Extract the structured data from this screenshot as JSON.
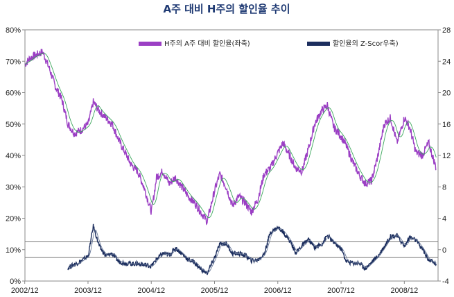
{
  "chart_data": {
    "type": "line",
    "title": "A주 대비 H주의 할인율 추이",
    "x_ticks": [
      "2002/12",
      "2003/12",
      "2004/12",
      "2005/12",
      "2006/12",
      "2007/12",
      "2008/12"
    ],
    "y_left": {
      "ticks": [
        "0%",
        "10%",
        "20%",
        "30%",
        "40%",
        "50%",
        "60%",
        "70%",
        "80%"
      ],
      "min": 0,
      "max": 80
    },
    "y_right": {
      "ticks": [
        "-4",
        "0",
        "4",
        "8",
        "12",
        "16",
        "20",
        "24",
        "28"
      ],
      "min": -4,
      "max": 28
    },
    "reference_lines_right_axis": [
      1.0,
      -1.0
    ],
    "series": [
      {
        "name": "H주의 A주 대비 할인율(좌축)",
        "axis": "left",
        "color": "#9b3fc4",
        "x": [
          2002.92,
          2003.0,
          2003.1,
          2003.2,
          2003.3,
          2003.4,
          2003.5,
          2003.6,
          2003.7,
          2003.8,
          2003.92,
          2004.0,
          2004.1,
          2004.2,
          2004.3,
          2004.4,
          2004.5,
          2004.6,
          2004.7,
          2004.8,
          2004.92,
          2005.0,
          2005.1,
          2005.2,
          2005.3,
          2005.4,
          2005.5,
          2005.6,
          2005.7,
          2005.8,
          2005.92,
          2006.0,
          2006.1,
          2006.2,
          2006.3,
          2006.4,
          2006.5,
          2006.6,
          2006.7,
          2006.8,
          2006.92,
          2007.0,
          2007.1,
          2007.2,
          2007.3,
          2007.4,
          2007.5,
          2007.6,
          2007.7,
          2007.8,
          2007.92,
          2008.0,
          2008.1,
          2008.2,
          2008.3,
          2008.4,
          2008.5,
          2008.6,
          2008.7,
          2008.8,
          2008.92,
          2009.0,
          2009.1,
          2009.2,
          2009.3,
          2009.42
        ],
        "y": [
          69,
          71,
          72,
          73,
          68,
          62,
          58,
          50,
          47,
          48,
          50,
          57,
          54,
          52,
          50,
          45,
          41,
          37,
          35,
          30,
          22,
          33,
          35,
          31,
          33,
          30,
          27,
          25,
          22,
          19,
          29,
          34,
          30,
          24,
          27,
          25,
          22,
          26,
          34,
          36,
          41,
          44,
          40,
          36,
          35,
          42,
          50,
          54,
          56,
          49,
          46,
          43,
          38,
          34,
          31,
          32,
          40,
          50,
          52,
          44,
          52,
          49,
          41,
          40,
          44,
          36
        ]
      },
      {
        "name": "할인율의 Z-Scor우축)",
        "axis": "right",
        "color": "#1c2e5e",
        "x": [
          2003.6,
          2003.7,
          2003.8,
          2003.92,
          2004.0,
          2004.1,
          2004.2,
          2004.3,
          2004.4,
          2004.5,
          2004.6,
          2004.7,
          2004.8,
          2004.92,
          2005.0,
          2005.1,
          2005.2,
          2005.3,
          2005.4,
          2005.5,
          2005.6,
          2005.7,
          2005.8,
          2005.92,
          2006.0,
          2006.1,
          2006.2,
          2006.3,
          2006.4,
          2006.5,
          2006.6,
          2006.7,
          2006.8,
          2006.92,
          2007.0,
          2007.1,
          2007.2,
          2007.3,
          2007.4,
          2007.5,
          2007.6,
          2007.7,
          2007.8,
          2007.92,
          2008.0,
          2008.1,
          2008.2,
          2008.3,
          2008.4,
          2008.5,
          2008.6,
          2008.7,
          2008.8,
          2008.92,
          2009.0,
          2009.1,
          2009.2,
          2009.3,
          2009.42
        ],
        "y": [
          -2.3,
          -1.9,
          -1.5,
          -0.8,
          3.0,
          0.3,
          -0.8,
          -0.5,
          -1.5,
          -1.7,
          -1.8,
          -1.8,
          -1.9,
          -2.1,
          -1.2,
          -0.5,
          -0.7,
          0.2,
          -0.5,
          -1.3,
          -1.6,
          -2.5,
          -3.0,
          -1.0,
          0.7,
          0.8,
          -0.5,
          -0.5,
          -0.7,
          -1.4,
          -1.3,
          -0.6,
          2.2,
          2.8,
          2.3,
          1.2,
          -0.4,
          0.5,
          1.3,
          0.3,
          0.6,
          1.8,
          0.9,
          0.1,
          -1.5,
          -1.7,
          -1.7,
          -2.4,
          -1.6,
          -0.8,
          0.4,
          1.7,
          1.8,
          0.4,
          1.6,
          1.2,
          0.1,
          -1.3,
          -1.8
        ]
      }
    ],
    "legend_position": "top",
    "grid": false
  }
}
